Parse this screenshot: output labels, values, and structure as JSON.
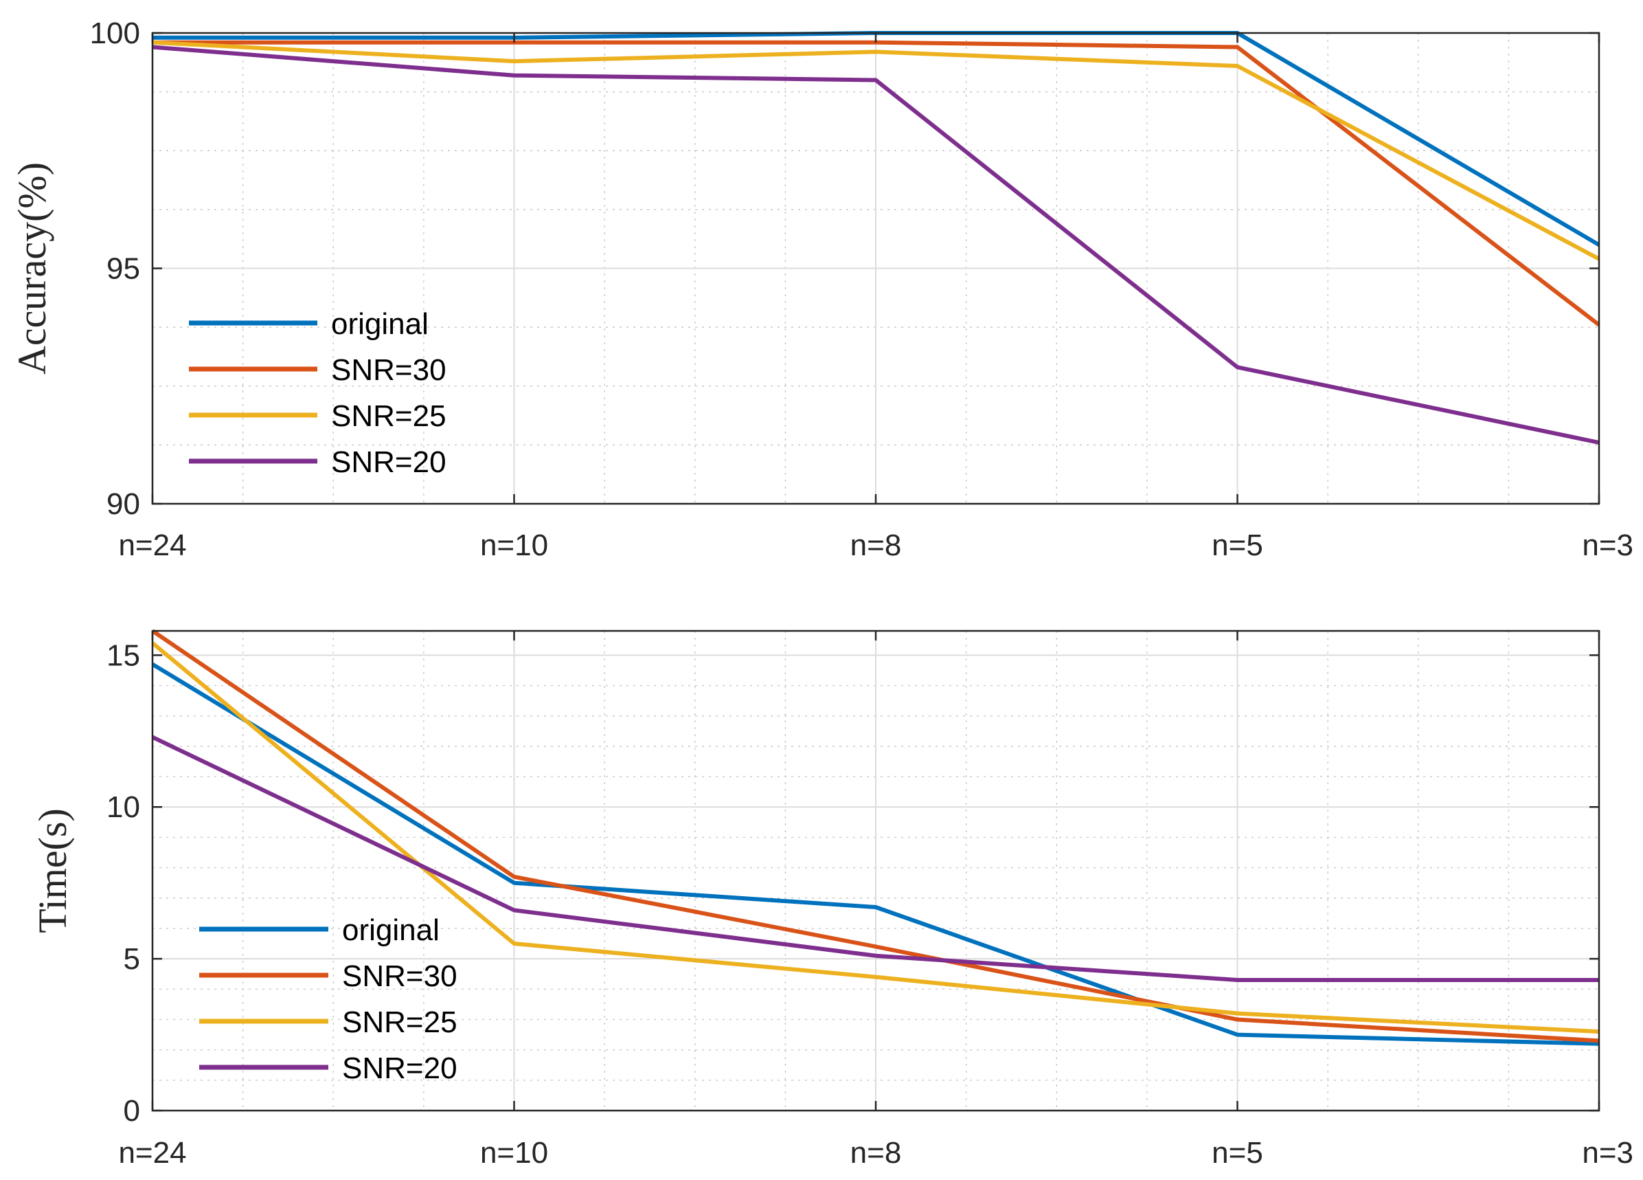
{
  "chart_data": [
    {
      "type": "line",
      "title": "",
      "xlabel": "",
      "ylabel": "Accuracy(%)",
      "categories": [
        "n=24",
        "n=10",
        "n=8",
        "n=5",
        "n=3"
      ],
      "ylim": [
        90,
        100
      ],
      "yticks": [
        90,
        95,
        100
      ],
      "ytick_labels": [
        "90",
        "95",
        "100"
      ],
      "grid": true,
      "legend": "left",
      "series": [
        {
          "name": "original",
          "color": "#0072BD",
          "values": [
            99.9,
            99.9,
            100.0,
            100.0,
            95.5
          ]
        },
        {
          "name": "SNR=30",
          "color": "#D95319",
          "values": [
            99.8,
            99.8,
            99.8,
            99.7,
            93.8
          ]
        },
        {
          "name": "SNR=25",
          "color": "#EDB120",
          "values": [
            99.8,
            99.4,
            99.6,
            99.3,
            95.2
          ]
        },
        {
          "name": "SNR=20",
          "color": "#7E2F8E",
          "values": [
            99.7,
            99.1,
            99.0,
            92.9,
            91.3
          ]
        }
      ]
    },
    {
      "type": "line",
      "title": "",
      "xlabel": "",
      "ylabel": "Time(s)",
      "categories": [
        "n=24",
        "n=10",
        "n=8",
        "n=5",
        "n=3"
      ],
      "ylim": [
        0,
        15.8
      ],
      "yticks": [
        0,
        5,
        10,
        15
      ],
      "ytick_labels": [
        "0",
        "5",
        "10",
        "15"
      ],
      "grid": true,
      "legend": "left",
      "series": [
        {
          "name": "original",
          "color": "#0072BD",
          "values": [
            14.7,
            7.5,
            6.7,
            2.5,
            2.2
          ]
        },
        {
          "name": "SNR=30",
          "color": "#D95319",
          "values": [
            15.8,
            7.7,
            5.4,
            3.0,
            2.3
          ]
        },
        {
          "name": "SNR=25",
          "color": "#EDB120",
          "values": [
            15.4,
            5.5,
            4.4,
            3.2,
            2.6
          ]
        },
        {
          "name": "SNR=20",
          "color": "#7E2F8E",
          "values": [
            12.3,
            6.6,
            5.1,
            4.3,
            4.3
          ]
        }
      ]
    }
  ]
}
